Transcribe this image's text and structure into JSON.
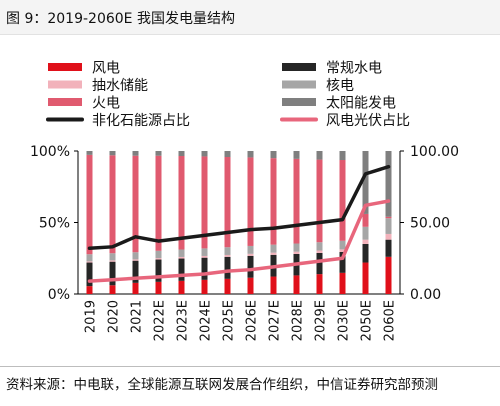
{
  "figure": {
    "title": "图 9：2019-2060E 我国发电量结构",
    "source": "资料来源：中电联，全球能源互联网发展合作组织，中信证券研究部预测"
  },
  "chart_data": {
    "type": "bar",
    "stacked": true,
    "categories": [
      "2019",
      "2020",
      "2021",
      "2022E",
      "2023E",
      "2024E",
      "2025E",
      "2026E",
      "2027E",
      "2028E",
      "2029E",
      "2030E",
      "2050E",
      "2060E"
    ],
    "y_left": {
      "ticks": [
        "0%",
        "50%",
        "100%"
      ],
      "ylim": [
        0,
        100
      ]
    },
    "y_right": {
      "ticks": [
        "0.00",
        "50.00",
        "100.00"
      ],
      "ylim": [
        0,
        100
      ]
    },
    "grid": false,
    "legend": {
      "placement": "top",
      "columns": 2
    },
    "series": [
      {
        "name": "风电",
        "kind": "bar",
        "color": "#e0101a",
        "values": [
          5.5,
          6.1,
          7.8,
          8.5,
          9.2,
          9.9,
          10.6,
          11.4,
          12.2,
          13.0,
          13.9,
          14.8,
          22,
          26
        ]
      },
      {
        "name": "常规水电",
        "kind": "bar",
        "color": "#262626",
        "values": [
          16.5,
          16.5,
          15.5,
          15.6,
          15.6,
          15.5,
          15.4,
          15.3,
          15.2,
          15.0,
          14.8,
          14.6,
          13,
          12
        ]
      },
      {
        "name": "抽水储能",
        "kind": "bar",
        "color": "#f2b2bb",
        "values": [
          0.8,
          0.9,
          0.9,
          1.0,
          1.1,
          1.2,
          1.3,
          1.4,
          1.5,
          1.6,
          1.7,
          1.8,
          3,
          4
        ]
      },
      {
        "name": "核电",
        "kind": "bar",
        "color": "#a6a6a6",
        "values": [
          5,
          5,
          5,
          5.1,
          5.2,
          5.3,
          5.4,
          5.5,
          5.6,
          5.7,
          5.8,
          6.0,
          9,
          11
        ]
      },
      {
        "name": "火电",
        "kind": "bar",
        "color": "#e05a6f",
        "values": [
          69.5,
          68.5,
          67.5,
          66.5,
          65.4,
          64.3,
          63.1,
          61.9,
          60.5,
          59.2,
          57.8,
          56.5,
          9,
          1
        ]
      },
      {
        "name": "太阳能发电",
        "kind": "bar",
        "color": "#7f7f7f",
        "values": [
          2.7,
          3.0,
          3.3,
          3.3,
          3.5,
          3.8,
          4.2,
          4.5,
          5.0,
          5.5,
          6.0,
          6.3,
          44,
          46
        ]
      },
      {
        "name": "非化石能源占比",
        "kind": "line",
        "axis": "right",
        "color": "#1a1a1a",
        "values": [
          32,
          33,
          40,
          37,
          39,
          41,
          43,
          45,
          46,
          48,
          50,
          52,
          84,
          89
        ]
      },
      {
        "name": "风电光伏占比",
        "kind": "line",
        "axis": "right",
        "color": "#e8667c",
        "values": [
          9,
          10,
          11,
          12,
          13,
          14,
          16,
          17,
          19,
          21,
          23,
          25,
          62,
          65
        ]
      }
    ]
  }
}
